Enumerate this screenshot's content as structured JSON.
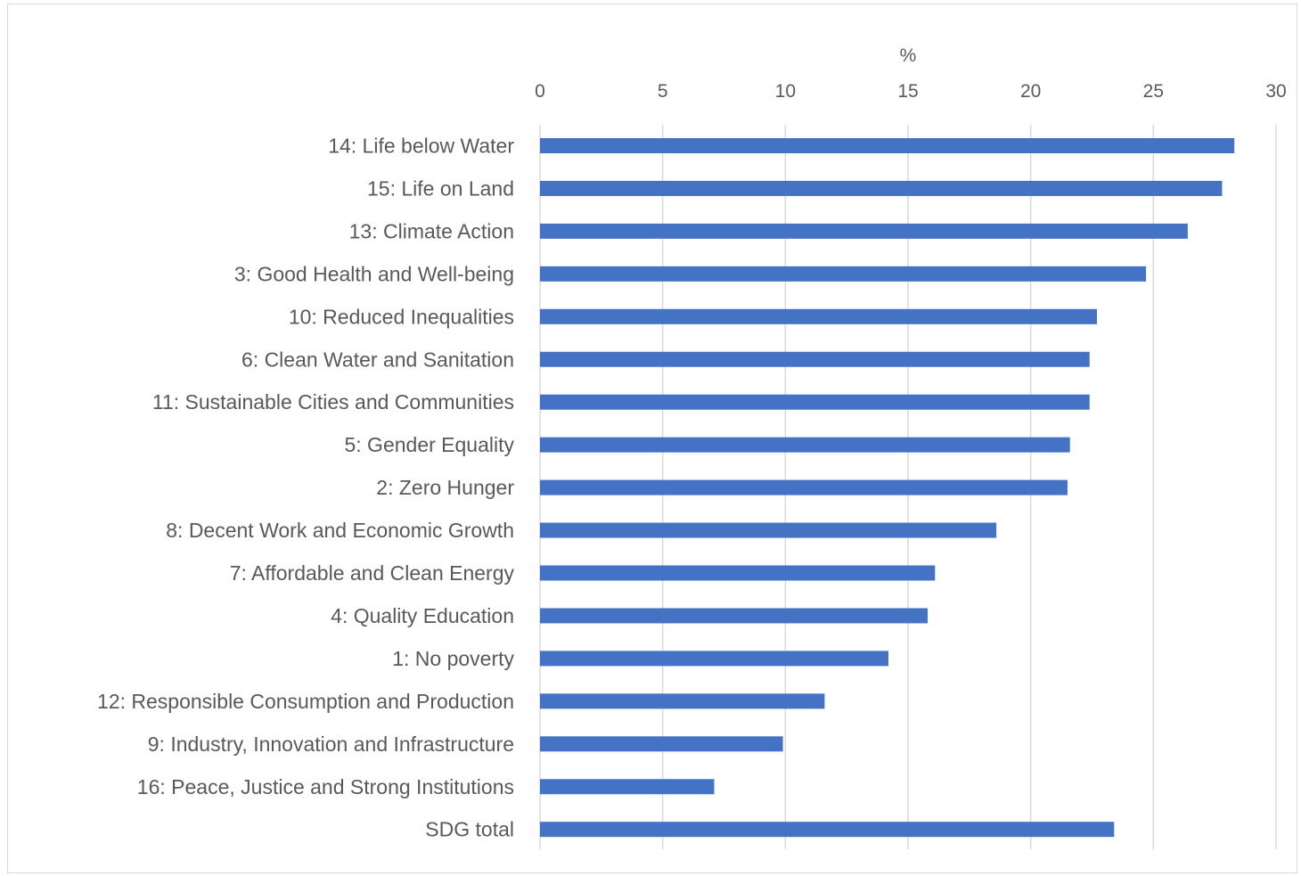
{
  "chart_data": {
    "type": "bar",
    "orientation": "horizontal",
    "title": "",
    "xlabel": "%",
    "ylabel": "",
    "xlim": [
      0,
      30
    ],
    "x_ticks": [
      "0",
      "5",
      "10",
      "15",
      "20",
      "25",
      "30"
    ],
    "x_axis_position": "top",
    "grid": true,
    "legend": "none",
    "bar_color": "#4472C4",
    "gridline_color": "#d9d9d9",
    "categories": [
      "14: Life below Water",
      "15: Life on Land",
      "13: Climate Action",
      "3: Good Health and Well-being",
      "10: Reduced Inequalities",
      "6: Clean Water and Sanitation",
      "11: Sustainable Cities and Communities",
      "5: Gender Equality",
      "2: Zero Hunger",
      "8: Decent Work and Economic Growth",
      "7: Affordable and Clean Energy",
      "4: Quality Education",
      "1: No poverty",
      "12: Responsible Consumption and Production",
      "9: Industry, Innovation and Infrastructure",
      "16: Peace, Justice and Strong Institutions",
      "SDG total"
    ],
    "values": [
      28.3,
      27.8,
      26.4,
      24.7,
      22.7,
      22.4,
      22.4,
      21.6,
      21.5,
      18.6,
      16.1,
      15.8,
      14.2,
      11.6,
      9.9,
      7.1,
      23.4
    ]
  }
}
